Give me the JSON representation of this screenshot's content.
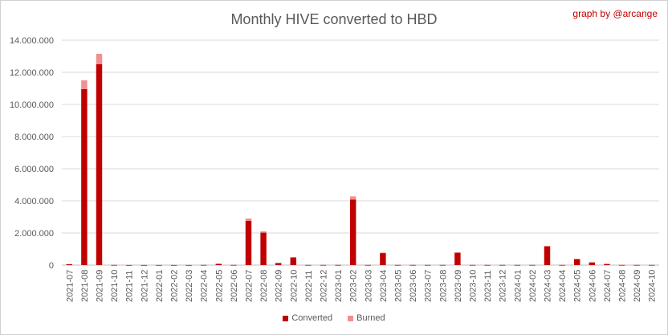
{
  "chart_data": {
    "type": "bar",
    "stacked": true,
    "title": "Monthly HIVE converted to HBD",
    "credit": "graph by @arcange",
    "xlabel": "",
    "ylabel": "",
    "ylim": [
      0,
      14000000
    ],
    "yticks": [
      0,
      2000000,
      4000000,
      6000000,
      8000000,
      10000000,
      12000000,
      14000000
    ],
    "ytick_labels": [
      "0",
      "2.000.000",
      "4.000.000",
      "6.000.000",
      "8.000.000",
      "10.000.000",
      "12.000.000",
      "14.000.000"
    ],
    "grid": true,
    "legend_position": "bottom",
    "categories": [
      "2021-07",
      "2021-08",
      "2021-09",
      "2021-10",
      "2021-11",
      "2021-12",
      "2022-01",
      "2022-02",
      "2022-03",
      "2022-04",
      "2022-05",
      "2022-06",
      "2022-07",
      "2022-08",
      "2022-09",
      "2022-10",
      "2022-11",
      "2022-12",
      "2023-01",
      "2023-02",
      "2023-03",
      "2023-04",
      "2023-05",
      "2023-06",
      "2023-07",
      "2023-08",
      "2023-09",
      "2023-10",
      "2023-11",
      "2023-12",
      "2024-01",
      "2024-02",
      "2024-03",
      "2024-04",
      "2024-05",
      "2024-06",
      "2024-07",
      "2024-08",
      "2024-09",
      "2024-10"
    ],
    "series": [
      {
        "name": "Converted",
        "color": "#c00000",
        "values": [
          60000,
          10950000,
          12500000,
          10000,
          5000,
          5000,
          5000,
          5000,
          5000,
          10000,
          80000,
          10000,
          2750000,
          2020000,
          130000,
          480000,
          10000,
          10000,
          10000,
          4080000,
          10000,
          760000,
          10000,
          10000,
          10000,
          10000,
          780000,
          10000,
          10000,
          10000,
          10000,
          10000,
          1170000,
          10000,
          380000,
          180000,
          70000,
          10000,
          10000,
          10000
        ]
      },
      {
        "name": "Burned",
        "color": "#f09090",
        "values": [
          0,
          550000,
          650000,
          0,
          0,
          0,
          0,
          0,
          0,
          0,
          0,
          0,
          150000,
          80000,
          0,
          0,
          0,
          0,
          0,
          200000,
          0,
          20000,
          0,
          0,
          0,
          0,
          20000,
          0,
          0,
          0,
          0,
          0,
          30000,
          0,
          20000,
          10000,
          0,
          0,
          0,
          0
        ]
      }
    ]
  }
}
